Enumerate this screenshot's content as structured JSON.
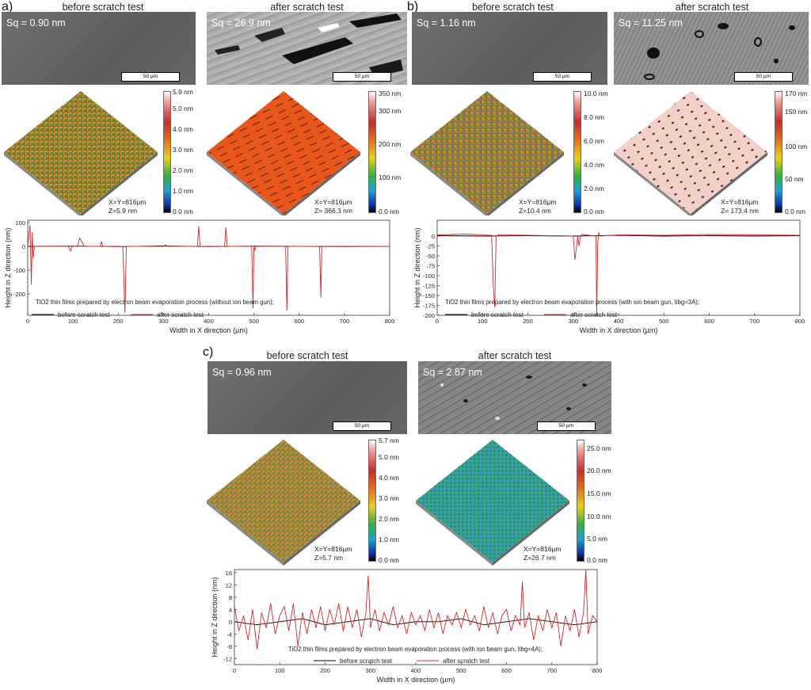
{
  "colors": {
    "before": "#000000",
    "after": "#d62728"
  },
  "panels": [
    {
      "letter": "a)",
      "before_title": "before scratch test",
      "after_title": "after scratch test",
      "sq_before": "Sq = 0.90 nm",
      "sq_after": "Sq = 26.9 nm",
      "scalebar": "50 µm",
      "surface_before": {
        "xy": "X=Y=816µm",
        "z": "Z=5.9 nm",
        "ticks": [
          "5.9 nm",
          "5.0 nm",
          "4.0 nm",
          "3.0 nm",
          "2.0 nm",
          "1.0 nm",
          "0.0 nm"
        ]
      },
      "surface_after": {
        "xy": "X=Y=816µm",
        "z": "Z= 366.3 nm",
        "ticks": [
          "350 nm",
          "300 nm",
          "200 nm",
          "100 nm",
          "0.0 nm"
        ]
      }
    },
    {
      "letter": "b)",
      "before_title": "before scratch test",
      "after_title": "after scratch test",
      "sq_before": "Sq = 1.16 nm",
      "sq_after": "Sq = 11.25 nm",
      "scalebar": "50 µm",
      "surface_before": {
        "xy": "X=Y=816µm",
        "z": "Z=10.4 nm",
        "ticks": [
          "10.0 nm",
          "8.0 nm",
          "6.0 nm",
          "4.0 nm",
          "2.0 nm",
          "0.0 nm"
        ]
      },
      "surface_after": {
        "xy": "X=Y=816µm",
        "z": "Z= 173.4 nm",
        "ticks": [
          "170 nm",
          "150 nm",
          "100 nm",
          "50 nm",
          "0.0 nm"
        ]
      }
    },
    {
      "letter": "c)",
      "before_title": "before scratch test",
      "after_title": "after scratch test",
      "sq_before": "Sq = 0.96 nm",
      "sq_after": "Sq = 2.87 nm",
      "scalebar": "50 µm",
      "surface_before": {
        "xy": "X=Y=816µm",
        "z": "Z=5.7 nm",
        "ticks": [
          "5.7 nm",
          "5.0 nm",
          "4.0 nm",
          "3.0 nm",
          "2.0 nm",
          "1.0 nm",
          "0.0 nm"
        ]
      },
      "surface_after": {
        "xy": "X=Y=816µm",
        "z": "Z=26.7 nm",
        "ticks": [
          "25.0 nm",
          "20.0 nm",
          "15.0 nm",
          "10.0 nm",
          "5.0 nm",
          "0.0 nm"
        ]
      }
    }
  ],
  "chart_data": [
    {
      "type": "line",
      "title": "TiO2 thin films prepared by electron beam evaporation process (without ion beam gun);",
      "xlabel": "Width in X direction (µm)",
      "ylabel": "Height in Z direction (nm)",
      "xlim": [
        0,
        800
      ],
      "ylim": [
        -290,
        110
      ],
      "xticks": [
        0,
        100,
        200,
        300,
        400,
        500,
        600,
        700,
        800
      ],
      "yticks": [
        100,
        0,
        -100,
        -200
      ],
      "legend": [
        "before scratch test",
        "after scratch test"
      ],
      "series": [
        {
          "name": "before scratch test",
          "x": [
            0,
            100,
            200,
            300,
            400,
            500,
            600,
            700,
            800
          ],
          "y": [
            0,
            1,
            -1,
            2,
            -1,
            1,
            0,
            -1,
            0
          ]
        },
        {
          "name": "after scratch test",
          "x": [
            0,
            5,
            8,
            10,
            12,
            15,
            90,
            95,
            98,
            110,
            115,
            125,
            135,
            160,
            163,
            166,
            170,
            210,
            215,
            218,
            221,
            224,
            300,
            305,
            308,
            375,
            378,
            381,
            384,
            435,
            438,
            441,
            444,
            495,
            498,
            500,
            502,
            505,
            508,
            511,
            514,
            570,
            573,
            575,
            577,
            580,
            645,
            648,
            650,
            652,
            655,
            800
          ],
          "y": [
            0,
            90,
            -160,
            60,
            -50,
            0,
            0,
            -20,
            0,
            0,
            35,
            0,
            0,
            0,
            18,
            0,
            0,
            0,
            -280,
            0,
            0,
            0,
            0,
            6,
            0,
            0,
            85,
            0,
            0,
            0,
            80,
            0,
            0,
            0,
            -260,
            0,
            -15,
            0,
            0,
            0,
            0,
            0,
            -270,
            0,
            0,
            0,
            0,
            -215,
            0,
            0,
            0,
            0
          ]
        }
      ]
    },
    {
      "type": "line",
      "title": "TiO2 thin films prepared by electron beam evaporation process (with ion beam gun, Iibg=3A);",
      "xlabel": "Width in X direction (µm)",
      "ylabel": "Height in Z direction (nm)",
      "xlim": [
        0,
        800
      ],
      "ylim": [
        -200,
        40
      ],
      "xticks": [
        0,
        100,
        200,
        300,
        400,
        500,
        600,
        700,
        800
      ],
      "yticks": [
        0,
        -25,
        -50,
        -75,
        -100,
        -125,
        -150,
        -175,
        -200
      ],
      "legend": [
        "before scratch test",
        "after scratch test"
      ],
      "series": [
        {
          "name": "before scratch test",
          "x": [
            0,
            100,
            200,
            300,
            400,
            500,
            600,
            700,
            800
          ],
          "y": [
            1,
            0,
            1,
            0,
            2,
            0,
            1,
            0,
            1
          ]
        },
        {
          "name": "after scratch test",
          "x": [
            0,
            60,
            120,
            124,
            127,
            130,
            135,
            200,
            300,
            304,
            307,
            310,
            313,
            316,
            320,
            350,
            352,
            354,
            356,
            358,
            400,
            500,
            600,
            700,
            800
          ],
          "y": [
            3,
            5,
            2,
            -130,
            -180,
            0,
            3,
            2,
            0,
            -60,
            -30,
            0,
            -25,
            0,
            4,
            0,
            -200,
            -20,
            10,
            0,
            3,
            2,
            4,
            3,
            2
          ]
        }
      ]
    },
    {
      "type": "line",
      "title": "TiO2 thin films prepared by electron beam evaporation process (with ion beam gun, Iibg=4A);",
      "xlabel": "Width in X direction (µm)",
      "ylabel": "Height in Z direction (nm)",
      "xlim": [
        0,
        800
      ],
      "ylim": [
        -14,
        17
      ],
      "xticks": [
        0,
        100,
        200,
        300,
        400,
        500,
        600,
        700,
        800
      ],
      "yticks": [
        16,
        12,
        8,
        4,
        0,
        -4,
        -8,
        -12
      ],
      "legend": [
        "before scratch test",
        "after scratch test"
      ],
      "series": [
        {
          "name": "before scratch test",
          "x": [
            0,
            50,
            100,
            150,
            200,
            250,
            300,
            350,
            400,
            450,
            500,
            550,
            600,
            650,
            700,
            750,
            800
          ],
          "y": [
            0,
            -1,
            0,
            1,
            -1,
            0,
            1,
            -1,
            0,
            0,
            1,
            -1,
            0,
            1,
            0,
            -1,
            0
          ]
        },
        {
          "name": "after scratch test",
          "x": [
            0,
            10,
            20,
            30,
            40,
            50,
            60,
            70,
            80,
            90,
            100,
            110,
            120,
            130,
            140,
            150,
            160,
            170,
            180,
            190,
            200,
            210,
            220,
            230,
            240,
            250,
            260,
            270,
            280,
            290,
            295,
            300,
            310,
            320,
            330,
            340,
            350,
            360,
            370,
            380,
            390,
            400,
            410,
            420,
            430,
            440,
            450,
            460,
            470,
            480,
            490,
            500,
            510,
            520,
            530,
            540,
            550,
            560,
            570,
            580,
            590,
            600,
            610,
            620,
            630,
            635,
            640,
            650,
            660,
            670,
            680,
            690,
            700,
            710,
            720,
            730,
            740,
            750,
            760,
            770,
            775,
            780,
            790,
            800
          ],
          "y": [
            5,
            -3,
            2,
            -6,
            4,
            -9,
            3,
            -2,
            6,
            -4,
            2,
            5,
            -3,
            6,
            -8,
            3,
            -4,
            4,
            -2,
            5,
            -3,
            4,
            -1,
            6,
            -3,
            5,
            -2,
            4,
            -5,
            3,
            15,
            -2,
            4,
            -3,
            3,
            -1,
            5,
            -2,
            2,
            -4,
            3,
            -1,
            2,
            -3,
            4,
            -2,
            3,
            -4,
            2,
            -1,
            3,
            -2,
            4,
            -1,
            2,
            -3,
            5,
            -2,
            3,
            -4,
            2,
            4,
            -3,
            2,
            -1,
            13,
            -2,
            3,
            -6,
            2,
            -3,
            4,
            -2,
            3,
            -8,
            2,
            -3,
            4,
            -5,
            3,
            17,
            -4,
            2,
            0
          ]
        }
      ]
    }
  ]
}
